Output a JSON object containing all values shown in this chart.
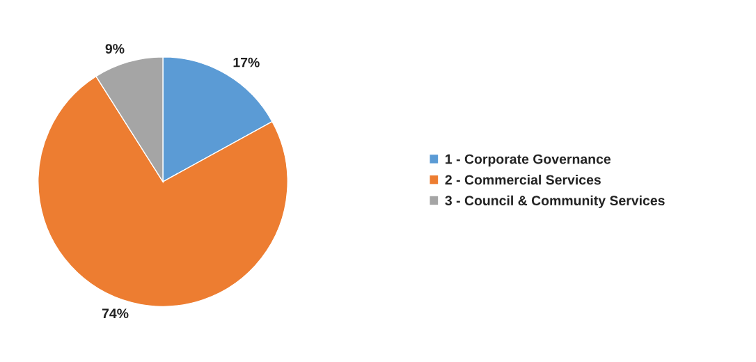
{
  "chart_data": {
    "type": "pie",
    "categories": [
      "1 - Corporate Governance",
      "2 - Commercial Services",
      "3 - Council & Community Services"
    ],
    "values": [
      17,
      74,
      9
    ],
    "colors": [
      "#5b9bd5",
      "#ed7d31",
      "#a5a5a5"
    ],
    "value_labels": [
      "17%",
      "74%",
      "9%"
    ],
    "legend": "right"
  }
}
